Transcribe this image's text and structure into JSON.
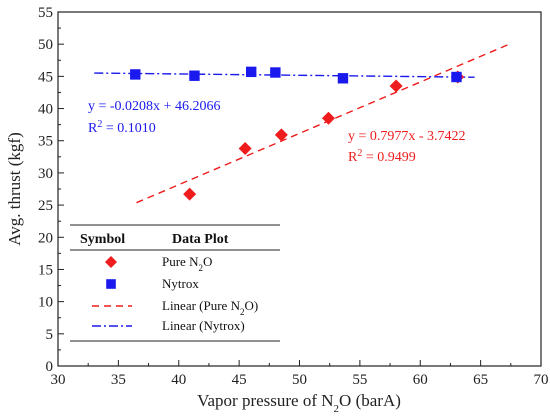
{
  "chart_data": {
    "type": "scatter",
    "xlabel": "Vapor pressure of N",
    "xlabel_sub": "2",
    "xlabel_tail": "O (barA)",
    "ylabel": "Avg. thrust (kgf)",
    "xlim": [
      30,
      70
    ],
    "ylim": [
      0,
      55
    ],
    "x_ticks": [
      "30",
      "35",
      "40",
      "45",
      "50",
      "55",
      "60",
      "65",
      "70"
    ],
    "y_ticks": [
      "0",
      "5",
      "10",
      "15",
      "20",
      "25",
      "30",
      "35",
      "40",
      "45",
      "50",
      "55"
    ],
    "grid": false,
    "series": [
      {
        "name": "Pure N2O",
        "marker": "diamond",
        "color": "#ee1c1c",
        "points": [
          {
            "x": 40.9,
            "y": 26.7
          },
          {
            "x": 45.5,
            "y": 33.8
          },
          {
            "x": 48.5,
            "y": 35.9
          },
          {
            "x": 52.4,
            "y": 38.5
          },
          {
            "x": 58.0,
            "y": 43.5
          },
          {
            "x": 63.1,
            "y": 44.9
          }
        ]
      },
      {
        "name": "Nytrox",
        "marker": "square",
        "color": "#1a1aee",
        "points": [
          {
            "x": 36.4,
            "y": 45.3
          },
          {
            "x": 41.3,
            "y": 45.1
          },
          {
            "x": 46.0,
            "y": 45.7
          },
          {
            "x": 48.0,
            "y": 45.6
          },
          {
            "x": 53.6,
            "y": 44.7
          },
          {
            "x": 63.0,
            "y": 44.9
          }
        ]
      }
    ],
    "fits": [
      {
        "name": "Linear (Pure N2O)",
        "color": "#ee1c1c",
        "style": "dashed",
        "slope": 0.7977,
        "intercept": -3.7422,
        "x_range": [
          36.5,
          67.5
        ],
        "equation": "y = 0.7977x - 3.7422",
        "r2_label": "R",
        "r2_sup": "2",
        "r2_value": " = 0.9499"
      },
      {
        "name": "Linear (Nytrox)",
        "color": "#1a1aee",
        "style": "dashdot",
        "slope": -0.0208,
        "intercept": 46.2066,
        "x_range": [
          33.0,
          64.5
        ],
        "equation": "y = -0.0208x + 46.2066",
        "r2_label": "R",
        "r2_sup": "2",
        "r2_value": " = 0.1010"
      }
    ],
    "legend": {
      "placement": "bottom-left",
      "header_symbol": "Symbol",
      "header_plot": "Data Plot",
      "entries": [
        {
          "label": "Pure N",
          "sub": "2",
          "tail": "O",
          "symbol": "diamond",
          "color": "#ee1c1c"
        },
        {
          "label": "Nytrox",
          "sub": "",
          "tail": "",
          "symbol": "square",
          "color": "#1a1aee"
        },
        {
          "label": "Linear (Pure N",
          "sub": "2",
          "tail": "O)",
          "symbol": "dashed",
          "color": "#ee1c1c"
        },
        {
          "label": "Linear (Nytrox)",
          "sub": "",
          "tail": "",
          "symbol": "dashdot",
          "color": "#1a1aee"
        }
      ]
    }
  }
}
